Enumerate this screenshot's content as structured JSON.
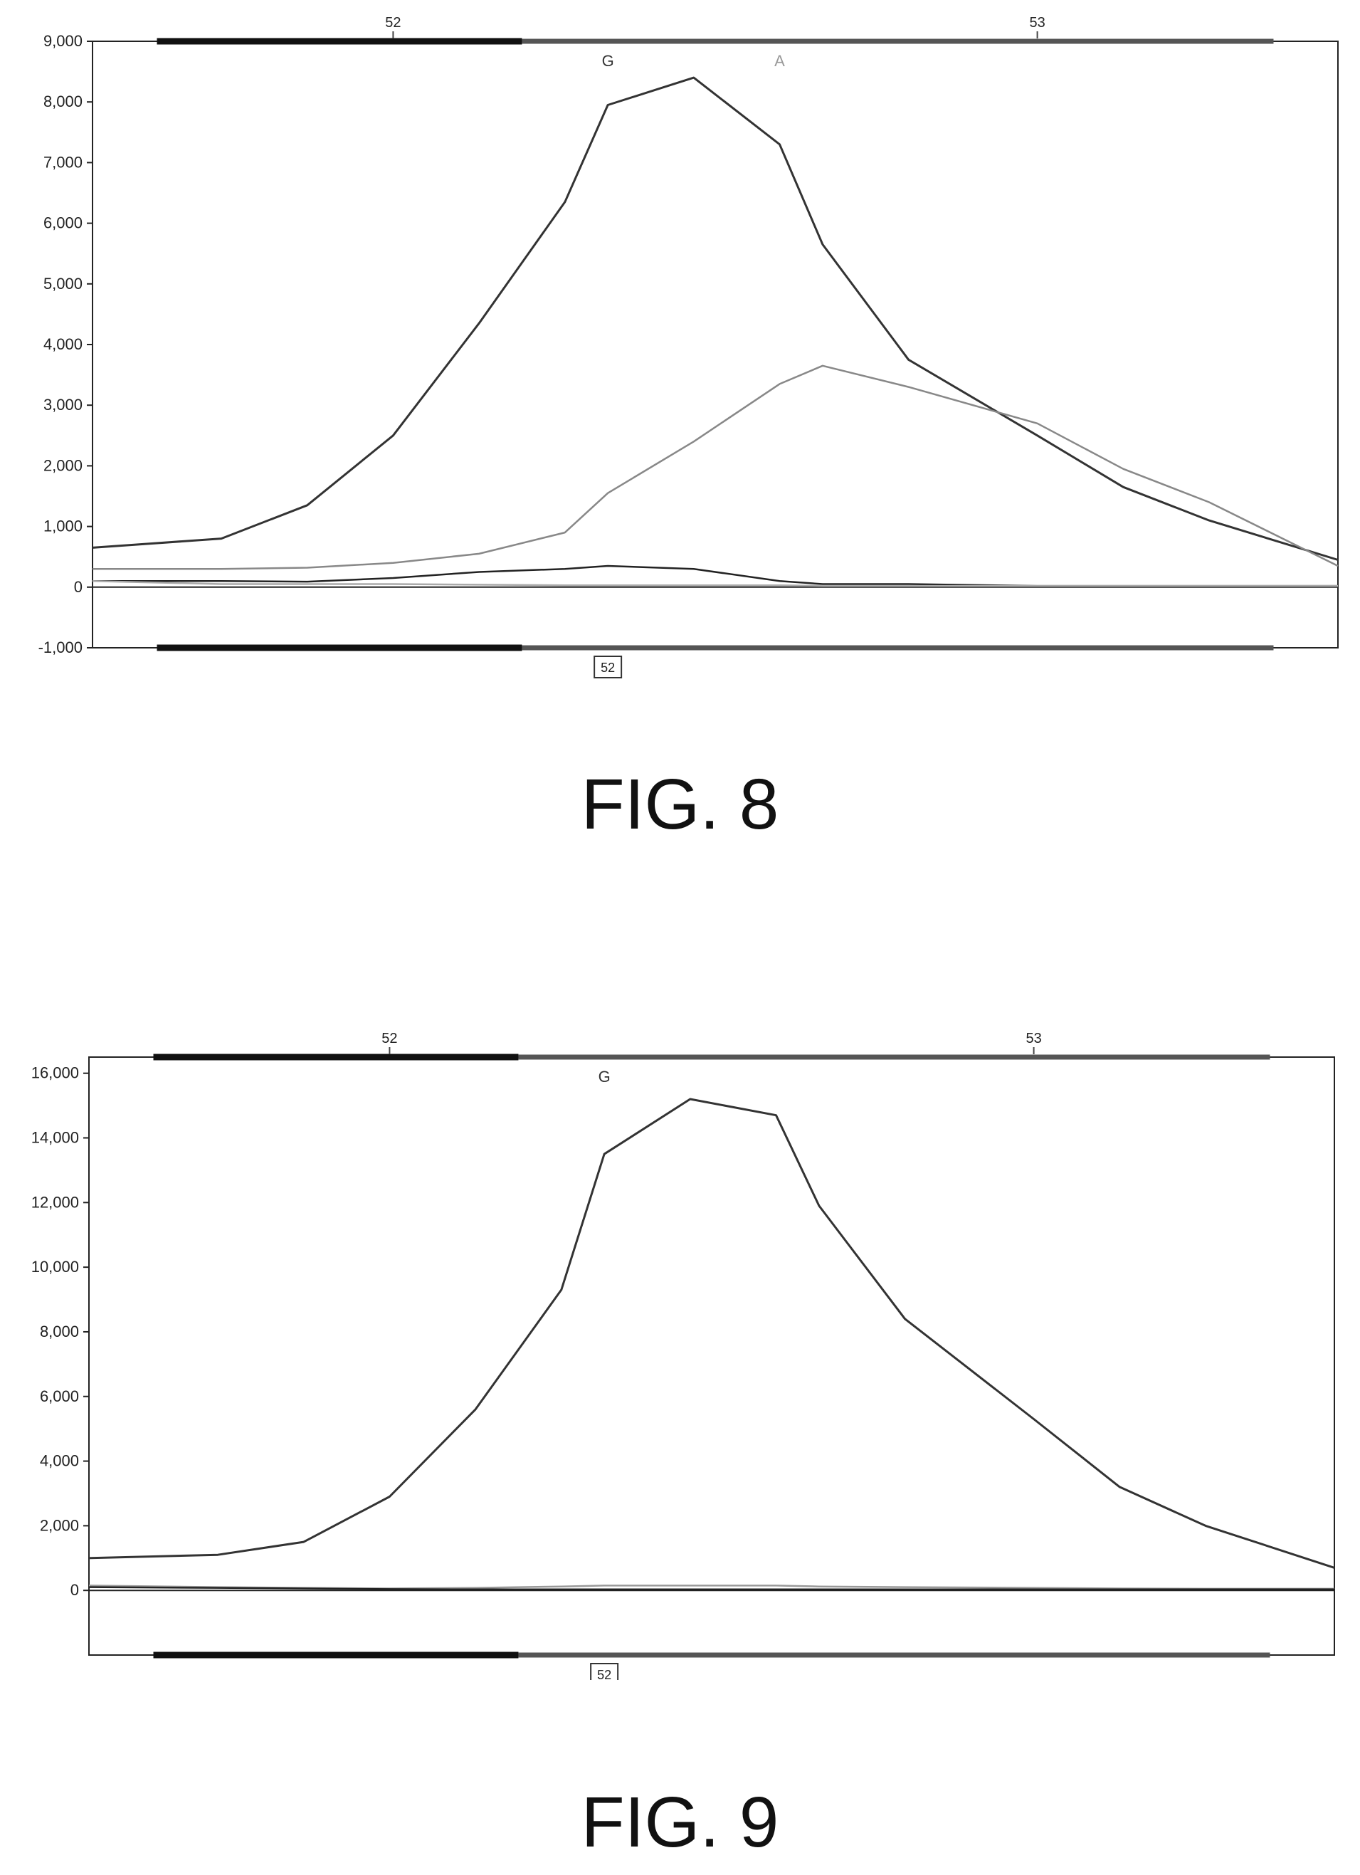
{
  "figures": [
    {
      "id": "fig8",
      "caption": "FIG. 8",
      "chart_data": {
        "type": "line",
        "title": "",
        "xlabel": "",
        "ylabel": "",
        "ylim": [
          -1000,
          9000
        ],
        "yticks": [
          -1000,
          0,
          1000,
          2000,
          3000,
          4000,
          5000,
          6000,
          7000,
          8000,
          9000
        ],
        "ytick_labels": [
          "-1,000",
          "0",
          "1,000",
          "2,000",
          "3,000",
          "4,000",
          "5,000",
          "6,000",
          "7,000",
          "8,000",
          "9,000"
        ],
        "xlim": [
          51.3,
          54.2
        ],
        "position_labels": [
          {
            "x": 52.0,
            "label": "52"
          },
          {
            "x": 53.5,
            "label": "53"
          }
        ],
        "base_calls": [
          {
            "x": 52.5,
            "label": "G",
            "color": "#333333"
          },
          {
            "x": 52.9,
            "label": "A",
            "color": "#999999"
          }
        ],
        "box_label": {
          "x": 52.5,
          "label": "52"
        },
        "grid": false,
        "x": [
          51.3,
          51.6,
          51.8,
          52.0,
          52.2,
          52.4,
          52.5,
          52.7,
          52.9,
          53.0,
          53.2,
          53.5,
          53.7,
          53.9,
          54.2
        ],
        "series": [
          {
            "color": "#333333",
            "values": [
              650,
              800,
              1350,
              2500,
              4350,
              6350,
              7950,
              8400,
              7300,
              5650,
              3750,
              2500,
              1650,
              1100,
              450
            ]
          },
          {
            "color": "#888888",
            "values": [
              300,
              300,
              320,
              400,
              550,
              900,
              1550,
              2400,
              3350,
              3650,
              3300,
              2700,
              1950,
              1400,
              350
            ]
          },
          {
            "color": "#222222",
            "values": [
              100,
              100,
              90,
              150,
              250,
              300,
              350,
              300,
              100,
              50,
              50,
              20,
              20,
              20,
              20
            ]
          },
          {
            "color": "#aaaaaa",
            "values": [
              100,
              50,
              50,
              50,
              40,
              30,
              30,
              30,
              30,
              20,
              20,
              20,
              20,
              20,
              20
            ]
          }
        ]
      }
    },
    {
      "id": "fig9",
      "caption": "FIG. 9",
      "chart_data": {
        "type": "line",
        "title": "",
        "xlabel": "",
        "ylabel": "",
        "ylim": [
          -2000,
          16500
        ],
        "yticks": [
          0,
          2000,
          4000,
          6000,
          8000,
          10000,
          12000,
          14000,
          16000
        ],
        "ytick_labels": [
          "0",
          "2,000",
          "4,000",
          "6,000",
          "8,000",
          "10,000",
          "12,000",
          "14,000",
          "16,000"
        ],
        "xlim": [
          51.3,
          54.2
        ],
        "position_labels": [
          {
            "x": 52.0,
            "label": "52"
          },
          {
            "x": 53.5,
            "label": "53"
          }
        ],
        "base_calls": [
          {
            "x": 52.5,
            "label": "G",
            "color": "#333333"
          }
        ],
        "box_label": {
          "x": 52.5,
          "label": "52"
        },
        "grid": false,
        "x": [
          51.3,
          51.6,
          51.8,
          52.0,
          52.2,
          52.4,
          52.5,
          52.7,
          52.9,
          53.0,
          53.2,
          53.5,
          53.7,
          53.9,
          54.2
        ],
        "series": [
          {
            "color": "#333333",
            "values": [
              1000,
              1100,
              1500,
              2900,
              5600,
              9300,
              13500,
              15200,
              14700,
              11900,
              8400,
              5300,
              3200,
              2000,
              700
            ]
          },
          {
            "color": "#999999",
            "values": [
              150,
              100,
              80,
              60,
              80,
              120,
              150,
              150,
              150,
              120,
              100,
              80,
              60,
              50,
              50
            ]
          },
          {
            "color": "#222222",
            "values": [
              100,
              80,
              60,
              40,
              30,
              30,
              30,
              30,
              30,
              30,
              30,
              30,
              30,
              30,
              30
            ]
          }
        ]
      }
    }
  ]
}
